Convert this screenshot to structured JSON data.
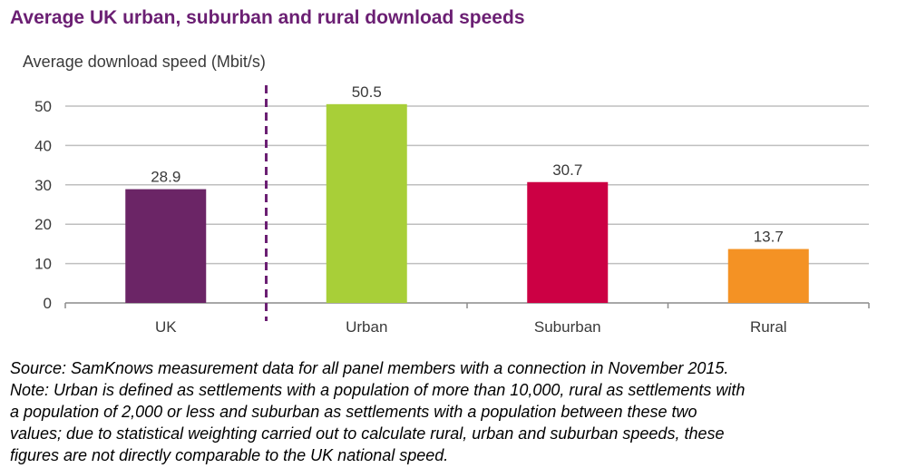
{
  "title": "Average UK urban, suburban and rural download speeds",
  "colors": {
    "title": "#6b1f73",
    "divider": "#6b1f73"
  },
  "chart_data": {
    "type": "bar",
    "ylabel": "Average download speed (Mbit/s)",
    "xlabel": "",
    "ylim": [
      0,
      50
    ],
    "yticks": [
      0,
      10,
      20,
      30,
      40,
      50
    ],
    "grid": true,
    "categories": [
      "UK",
      "Urban",
      "Suburban",
      "Rural"
    ],
    "values": [
      28.9,
      50.5,
      30.7,
      13.7
    ],
    "data_labels": [
      "28.9",
      "50.5",
      "30.7",
      "13.7"
    ],
    "bar_colors": [
      "#6b2566",
      "#a8cf38",
      "#cc0044",
      "#f49224"
    ],
    "divider": "dashed line separating UK from urban/suburban/rural"
  },
  "notes": [
    "Source: SamKnows measurement data for all panel members with a connection in November 2015.",
    "Note: Urban is defined as settlements with a population of more than 10,000, rural as settlements with",
    "a population of 2,000 or less and suburban as settlements with a population between these two",
    "values; due to statistical weighting carried out to calculate rural, urban and suburban speeds, these",
    "figures are not directly comparable to the UK national speed."
  ]
}
